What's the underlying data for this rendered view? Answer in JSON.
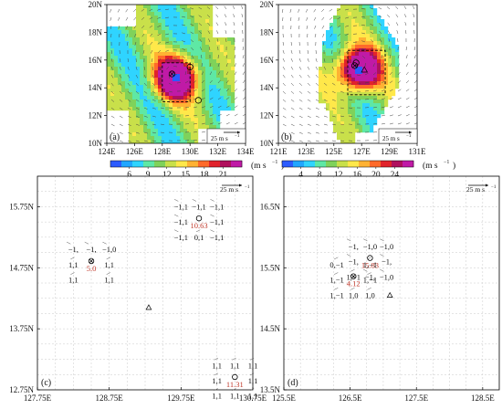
{
  "figure": {
    "panels": [
      {
        "id": "a",
        "label": "(a)",
        "type": "wind_speed_map",
        "x_ticks": [
          "124E",
          "126E",
          "128E",
          "130E",
          "132E",
          "134E"
        ],
        "y_ticks": [
          "10N",
          "12N",
          "14N",
          "16N",
          "18N",
          "20N"
        ],
        "x_range": [
          124,
          134
        ],
        "y_range": [
          10,
          20
        ],
        "reference_vector_label": "25 m s",
        "reference_vector_exponent": "−1",
        "colorbar_ticks": [
          "6",
          "9",
          "12",
          "15",
          "18",
          "21"
        ],
        "colorbar_units": "(m s",
        "colorbar_units_exponent": "−1",
        "colorbar_units_close": ")",
        "colorbar_colors": [
          "#2c5bff",
          "#20a6ff",
          "#2fd4ff",
          "#5ee8a5",
          "#7fd25a",
          "#c9e04a",
          "#ffe84a",
          "#ffb233",
          "#ff6a2a",
          "#e1232b",
          "#b0105d",
          "#c01aa6"
        ],
        "dashed_box_lon": [
          128,
          130
        ],
        "dashed_box_lat": [
          13,
          15.8
        ],
        "symbols": [
          {
            "symbol": "open-circle",
            "lon": 130.0,
            "lat": 15.5
          },
          {
            "symbol": "crossed-circle",
            "lon": 128.7,
            "lat": 15.0
          },
          {
            "symbol": "open-circle",
            "lon": 130.6,
            "lat": 13.1
          }
        ]
      },
      {
        "id": "b",
        "label": "(b)",
        "type": "wind_speed_map",
        "x_ticks": [
          "121E",
          "123E",
          "125E",
          "127E",
          "129E",
          "131E"
        ],
        "y_ticks": [
          "10N",
          "12N",
          "14N",
          "16N",
          "18N",
          "20N"
        ],
        "x_range": [
          121,
          131
        ],
        "y_range": [
          10,
          20
        ],
        "reference_vector_label": "25 m s",
        "reference_vector_exponent": "−1",
        "colorbar_ticks": [
          "4",
          "8",
          "12",
          "16",
          "20",
          "24"
        ],
        "colorbar_units": "(m s",
        "colorbar_units_exponent": "−1",
        "colorbar_units_close": ")",
        "colorbar_colors": [
          "#2c5bff",
          "#20a6ff",
          "#2fd4ff",
          "#5ee8a5",
          "#7fd25a",
          "#c9e04a",
          "#ffe84a",
          "#ffb233",
          "#ff6a2a",
          "#e1232b",
          "#b0105d",
          "#c01aa6"
        ],
        "dashed_box_lon": [
          126,
          128.7
        ],
        "dashed_box_lat": [
          13.5,
          16.7
        ],
        "symbols": [
          {
            "symbol": "open-circle",
            "lon": 126.6,
            "lat": 15.8
          },
          {
            "symbol": "crossed-circle",
            "lon": 126.5,
            "lat": 15.6
          },
          {
            "symbol": "triangle",
            "lon": 127.2,
            "lat": 15.3
          }
        ]
      },
      {
        "id": "c",
        "label": "(c)",
        "type": "station_grid",
        "x_ticks": [
          "127.75E",
          "128.75E",
          "129.75E",
          "130.75E"
        ],
        "y_ticks": [
          "12.75N",
          "13.75N",
          "14.75N",
          "15.75N"
        ],
        "x_range": [
          127.75,
          130.75
        ],
        "y_range": [
          12.75,
          16.25
        ],
        "reference_vector_label": "25 m s",
        "reference_vector_exponent": "−1",
        "clusters": [
          {
            "center_lon": 128.5,
            "center_lat": 14.8,
            "symbol": "crossed-circle",
            "value": "5.0",
            "rows": [
              [
                "−1,",
                "−1,",
                "−1,0"
              ],
              [
                "1,1",
                "",
                "1,1"
              ],
              [
                "1,1",
                "",
                "1,1"
              ]
            ]
          },
          {
            "center_lon": 130.0,
            "center_lat": 15.5,
            "symbol": "open-circle",
            "value": "10.63",
            "rows": [
              [
                "−1,1",
                "−1,1",
                "−1,1"
              ],
              [
                "−1,1",
                "",
                "−1,1"
              ],
              [
                "−1,1",
                "0,1",
                "−1,1"
              ]
            ]
          },
          {
            "center_lon": 130.5,
            "center_lat": 12.9,
            "symbol": "open-circle",
            "value": "11.31",
            "rows": [
              [
                "1,1",
                "1,1",
                "1,1"
              ],
              [
                "1,1",
                "",
                "1,1"
              ],
              [
                "1,1",
                "1,1",
                "1,1"
              ]
            ]
          }
        ],
        "extra_symbols": [
          {
            "symbol": "triangle",
            "lon": 129.3,
            "lat": 14.1
          }
        ]
      },
      {
        "id": "d",
        "label": "(d)",
        "type": "station_grid",
        "x_ticks": [
          "125.5E",
          "126.5E",
          "127.5E",
          "128.5E"
        ],
        "y_ticks": [
          "13.5N",
          "14.5N",
          "15.5N",
          "16.5N"
        ],
        "x_range": [
          125.5,
          128.75
        ],
        "y_range": [
          13.5,
          17.0
        ],
        "reference_vector_label": "25 m s",
        "reference_vector_exponent": "−1",
        "clusters": [
          {
            "center_lon": 126.8,
            "center_lat": 15.6,
            "symbol": "open-circle",
            "value": "15.83",
            "rows": [
              [
                "−1,",
                "−1,0",
                "−1,0"
              ],
              [
                "−1,",
                "",
                "−1,"
              ],
              [
                "1,−1",
                "−1,",
                "−1,0"
              ]
            ]
          },
          {
            "center_lon": 126.55,
            "center_lat": 15.3,
            "symbol": "crossed-circle",
            "value": "4.12",
            "rows": [
              [
                "0,−1",
                "",
                "1,−1"
              ],
              [
                "1,−1",
                "",
                "1,−1"
              ],
              [
                "1,−1",
                "1,0",
                "1,0"
              ]
            ]
          }
        ],
        "extra_symbols": [
          {
            "symbol": "triangle",
            "lon": 127.1,
            "lat": 15.05
          }
        ]
      }
    ],
    "accent_value_color": "#c0392b"
  }
}
